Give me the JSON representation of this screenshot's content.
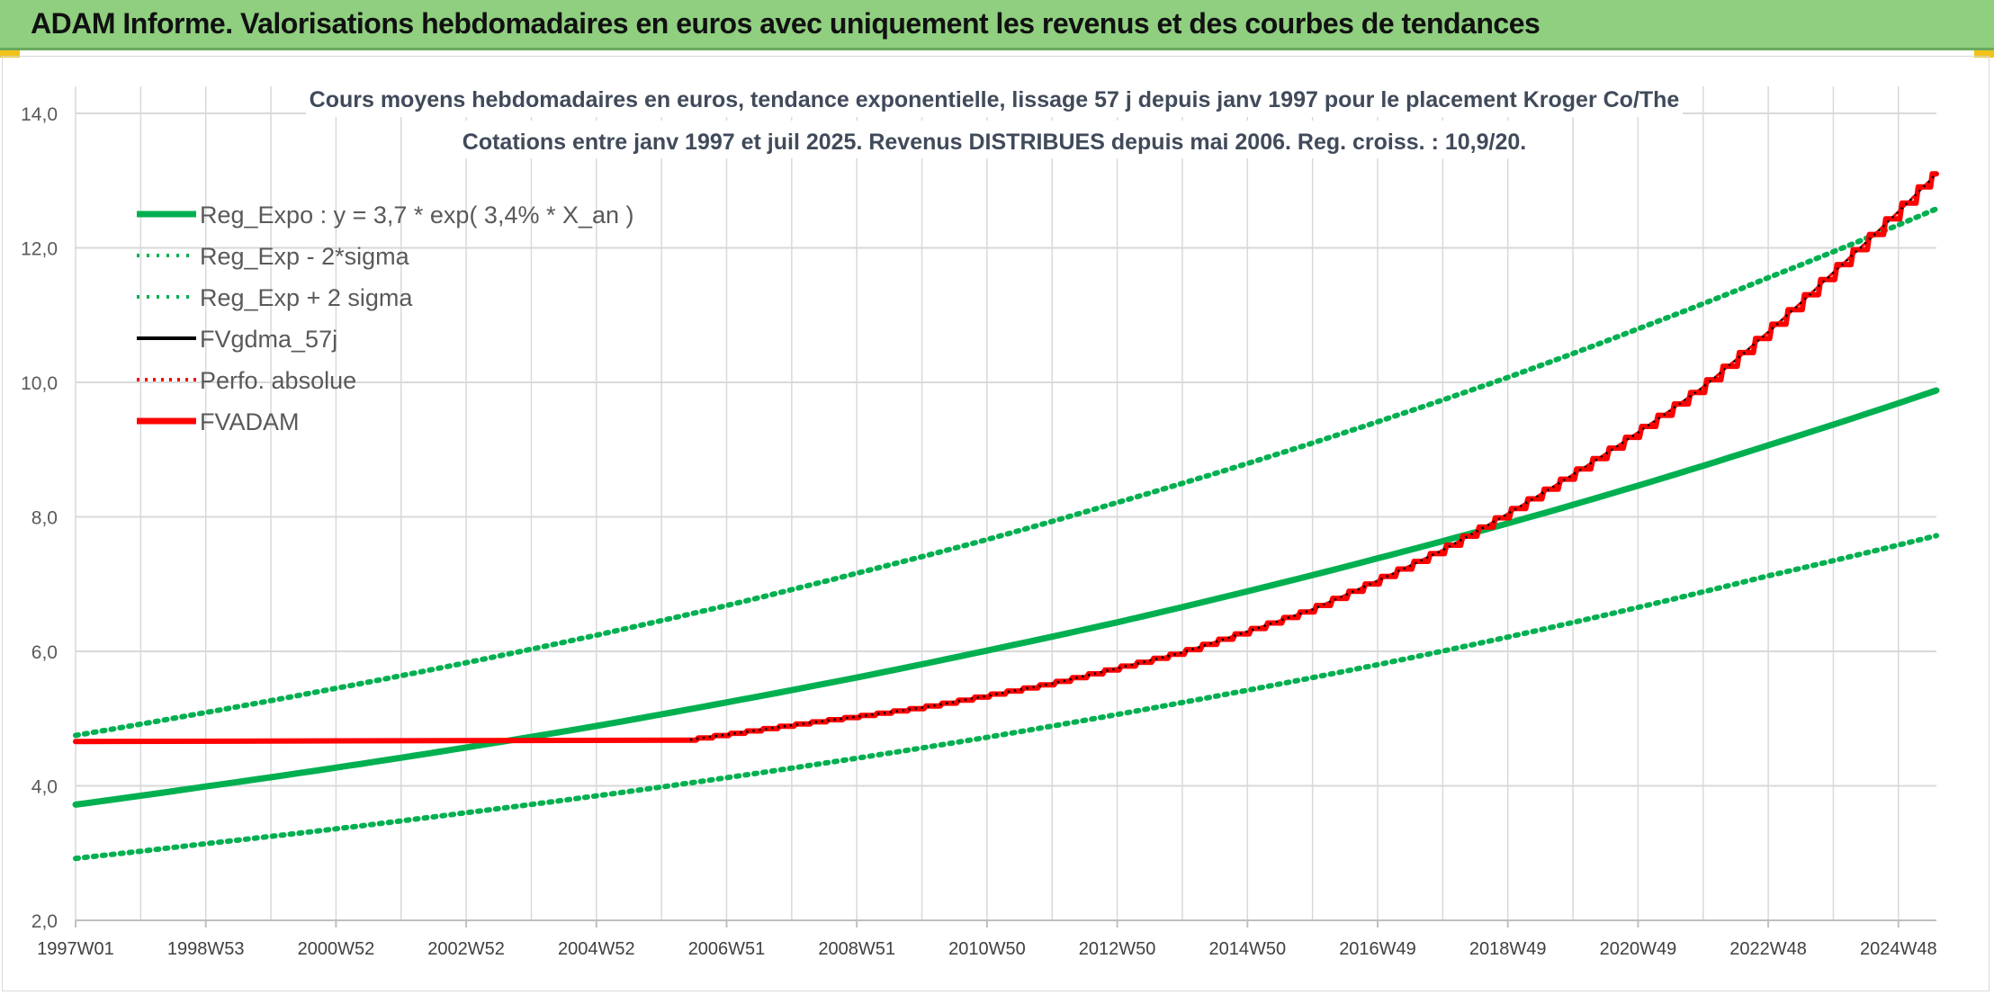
{
  "banner": {
    "title": "ADAM Informe. Valorisations hebdomadaires en euros avec uniquement les revenus et des courbes de tendances"
  },
  "colors": {
    "banner_bg": "#8fcf7f",
    "green": "#00b050",
    "red": "#ff0000",
    "black": "#000000",
    "grid": "#d9d9d9"
  },
  "chart_data": {
    "type": "line",
    "title_line1": "Cours moyens hebdomadaires en euros, tendance exponentielle, lissage 57 j depuis janv 1997 pour le placement Kroger Co/The",
    "title_line2": "Cotations entre janv 1997 et juil 2025. Revenus DISTRIBUES depuis mai 2006. Reg. croiss. : 10,9/20.",
    "xlabel": "",
    "ylabel": "",
    "ylim": [
      2.0,
      14.0
    ],
    "y_ticks": [
      "2,0",
      "4,0",
      "6,0",
      "8,0",
      "10,0",
      "12,0",
      "14,0"
    ],
    "x_ticks": [
      "1997W01",
      "1998W53",
      "2000W52",
      "2002W52",
      "2004W52",
      "2006W51",
      "2008W51",
      "2010W50",
      "2012W50",
      "2014W50",
      "2016W49",
      "2018W49",
      "2020W49",
      "2022W48",
      "2024W48"
    ],
    "x_range_years": [
      1997.0,
      2025.6
    ],
    "grid": true,
    "legend_position": "top-left",
    "series": [
      {
        "name": "Reg_Expo : y = 3,7 * exp( 3,4% *  X_an )",
        "style": "solid-green",
        "x": [
          1997,
          1999,
          2001,
          2003,
          2005,
          2007,
          2009,
          2011,
          2013,
          2015,
          2017,
          2019,
          2021,
          2023,
          2025.6
        ],
        "values": [
          3.72,
          3.99,
          4.27,
          4.57,
          4.89,
          5.24,
          5.61,
          6.01,
          6.43,
          6.89,
          7.38,
          7.9,
          8.46,
          9.06,
          9.88
        ]
      },
      {
        "name": "Reg_Exp - 2*sigma",
        "style": "dotted-green",
        "x": [
          1997,
          1999,
          2001,
          2003,
          2005,
          2007,
          2009,
          2011,
          2013,
          2015,
          2017,
          2019,
          2021,
          2023,
          2025.6
        ],
        "values": [
          2.92,
          3.14,
          3.36,
          3.6,
          3.85,
          4.12,
          4.41,
          4.72,
          5.06,
          5.42,
          5.8,
          6.21,
          6.65,
          7.12,
          7.72
        ]
      },
      {
        "name": "Reg_Exp + 2 sigma",
        "style": "dotted-green",
        "x": [
          1997,
          1999,
          2001,
          2003,
          2005,
          2007,
          2009,
          2011,
          2013,
          2015,
          2017,
          2019,
          2021,
          2023,
          2025.6
        ],
        "values": [
          4.75,
          5.09,
          5.45,
          5.83,
          6.24,
          6.68,
          7.16,
          7.66,
          8.21,
          8.79,
          9.41,
          10.07,
          10.79,
          11.55,
          12.58
        ]
      },
      {
        "name": "FVgdma_57j",
        "style": "solid-black",
        "x": [
          2006.4,
          2008,
          2010,
          2012,
          2014,
          2016,
          2018,
          2020,
          2022,
          2024,
          2025.6
        ],
        "values": [
          4.68,
          4.9,
          5.16,
          5.52,
          5.98,
          6.62,
          7.5,
          8.62,
          9.92,
          11.62,
          13.1
        ]
      },
      {
        "name": "Perfo. absolue",
        "style": "dotted-red",
        "x": [
          2006.4,
          2008,
          2010,
          2012,
          2014,
          2016,
          2018,
          2020,
          2022,
          2024,
          2025.6
        ],
        "values": [
          4.68,
          4.9,
          5.16,
          5.52,
          5.98,
          6.62,
          7.5,
          8.62,
          9.92,
          11.62,
          13.1
        ]
      },
      {
        "name": "FVADAM",
        "style": "solid-red-stepped",
        "x": [
          1997,
          2006.4,
          2008,
          2010,
          2012,
          2014,
          2016,
          2018,
          2020,
          2022,
          2024,
          2025.6
        ],
        "values": [
          4.66,
          4.68,
          4.9,
          5.16,
          5.52,
          5.98,
          6.62,
          7.5,
          8.62,
          9.92,
          11.62,
          13.1
        ]
      }
    ]
  }
}
